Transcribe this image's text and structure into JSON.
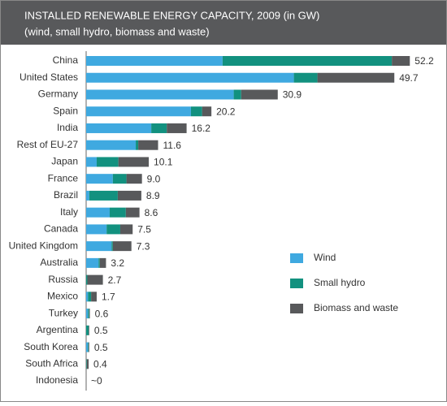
{
  "chart_data": {
    "type": "stacked-bar-horizontal",
    "title": "INSTALLED RENEWABLE ENERGY CAPACITY, 2009 (in GW)",
    "subtitle": "(wind, small hydro, biomass and waste)",
    "categories": [
      "China",
      "United States",
      "Germany",
      "Spain",
      "India",
      "Rest of EU-27",
      "Japan",
      "France",
      "Brazil",
      "Italy",
      "Canada",
      "United Kingdom",
      "Australia",
      "Russia",
      "Mexico",
      "Turkey",
      "Argentina",
      "South Korea",
      "South Africa",
      "Indonesia"
    ],
    "series": [
      {
        "name": "Wind",
        "color": "#3fa9e0",
        "values": [
          22.0,
          33.5,
          23.8,
          16.9,
          10.5,
          8.0,
          1.7,
          4.3,
          0.5,
          3.8,
          3.3,
          4.1,
          2.0,
          0,
          0.3,
          0.3,
          0,
          0.3,
          0,
          0
        ]
      },
      {
        "name": "Small hydro",
        "color": "#12917f",
        "values": [
          27.3,
          3.8,
          1.2,
          1.8,
          2.5,
          0.4,
          3.5,
          2.2,
          4.6,
          2.6,
          2.2,
          0.2,
          0.2,
          0.2,
          0.5,
          0.2,
          0.4,
          0.1,
          0.1,
          0
        ]
      },
      {
        "name": "Biomass and waste",
        "color": "#58595b",
        "values": [
          2.9,
          12.4,
          5.9,
          1.5,
          3.2,
          3.2,
          4.9,
          2.5,
          3.8,
          2.2,
          2.0,
          3.0,
          1.0,
          2.5,
          0.9,
          0.1,
          0.1,
          0.1,
          0.3,
          0
        ]
      }
    ],
    "totals": {
      "values": [
        52.2,
        49.7,
        30.9,
        20.2,
        16.2,
        11.6,
        10.1,
        9.0,
        8.9,
        8.6,
        7.5,
        7.3,
        3.2,
        2.7,
        1.7,
        0.6,
        0.5,
        0.5,
        0.4,
        0
      ],
      "value_labels": [
        "52.2",
        "49.7",
        "30.9",
        "20.2",
        "16.2",
        "11.6",
        "10.1",
        "9.0",
        "8.9",
        "8.6",
        "7.5",
        "7.3",
        "3.2",
        "2.7",
        "1.7",
        "0.6",
        "0.5",
        "0.5",
        "0.4",
        "~0"
      ]
    },
    "xlim": [
      0,
      54
    ]
  }
}
